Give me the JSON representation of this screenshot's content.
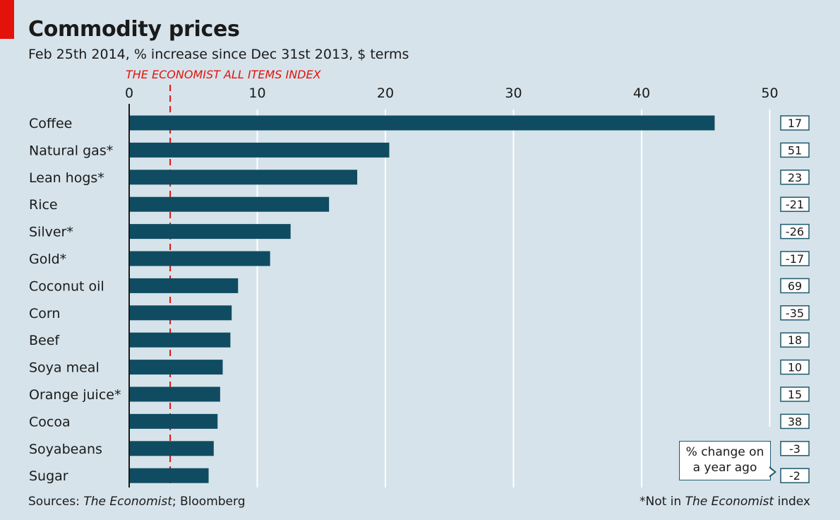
{
  "header": {
    "title": "Commodity prices",
    "subtitle": "Feb 25th 2014, % increase since Dec 31st 2013, $ terms"
  },
  "colors": {
    "background": "#d6e3ea",
    "bar": "#0f4c62",
    "accent_red": "#e3120b",
    "gridline": "#ffffff",
    "box_border": "#1f5a6e"
  },
  "chart_data": {
    "type": "bar",
    "orientation": "horizontal",
    "categories": [
      "Coffee",
      "Natural gas*",
      "Lean hogs*",
      "Rice",
      "Silver*",
      "Gold*",
      "Coconut oil",
      "Corn",
      "Beef",
      "Soya meal",
      "Orange juice*",
      "Cocoa",
      "Soyabeans",
      "Sugar"
    ],
    "values": [
      45.7,
      20.3,
      17.8,
      15.6,
      12.6,
      11.0,
      8.5,
      8.0,
      7.9,
      7.3,
      7.1,
      6.9,
      6.6,
      6.2
    ],
    "year_ago_change": [
      "17",
      "51",
      "23",
      "-21",
      "-26",
      "-17",
      "69",
      "-35",
      "18",
      "10",
      "15",
      "38",
      "-3",
      "-2"
    ],
    "xlim": [
      0,
      50
    ],
    "x_ticks": [
      "0",
      "10",
      "20",
      "30",
      "40",
      "50"
    ],
    "grid": true,
    "reference_line": {
      "label": "THE ECONOMIST ALL ITEMS INDEX",
      "value": 3.2,
      "style": "dashed"
    }
  },
  "callout": {
    "line1": "% change on",
    "line2": "a year ago"
  },
  "footer": {
    "sources_prefix": "Sources: ",
    "sources_italic": "The Economist",
    "sources_suffix": "; Bloomberg",
    "footnote_prefix": "*Not in ",
    "footnote_italic": "The Economist",
    "footnote_suffix": " index"
  }
}
